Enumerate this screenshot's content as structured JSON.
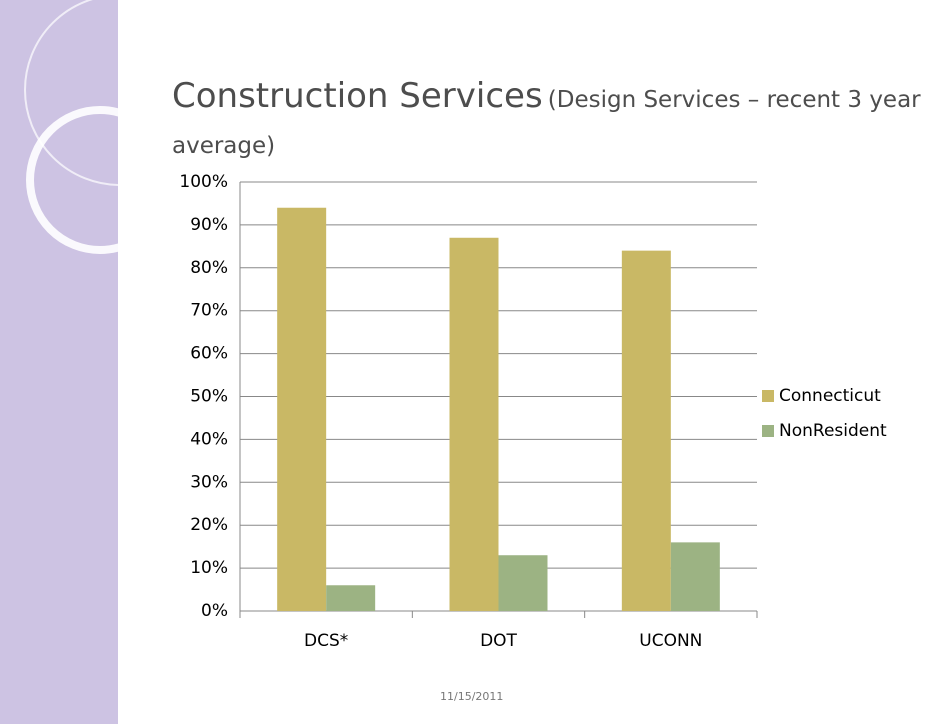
{
  "chart_data": {
    "type": "bar",
    "title": "Construction Services",
    "subtitle": "(Design Services – recent 3 year average)",
    "categories": [
      "DCS*",
      "DOT",
      "UCONN"
    ],
    "series": [
      {
        "name": "Connecticut",
        "color": "#c9b865",
        "values": [
          94,
          87,
          84
        ]
      },
      {
        "name": "NonResident",
        "color": "#9cb383",
        "values": [
          6,
          13,
          16
        ]
      }
    ],
    "ylim": [
      0,
      100
    ],
    "yticks": [
      {
        "value": 0,
        "label": "0%"
      },
      {
        "value": 10,
        "label": "10%"
      },
      {
        "value": 20,
        "label": "20%"
      },
      {
        "value": 30,
        "label": "30%"
      },
      {
        "value": 40,
        "label": "40%"
      },
      {
        "value": 50,
        "label": "50%"
      },
      {
        "value": 60,
        "label": "60%"
      },
      {
        "value": 70,
        "label": "70%"
      },
      {
        "value": 80,
        "label": "80%"
      },
      {
        "value": 90,
        "label": "90%"
      },
      {
        "value": 100,
        "label": "100%"
      }
    ],
    "grid": true,
    "legend": "right"
  },
  "footer": {
    "date": "11/15/2011"
  }
}
